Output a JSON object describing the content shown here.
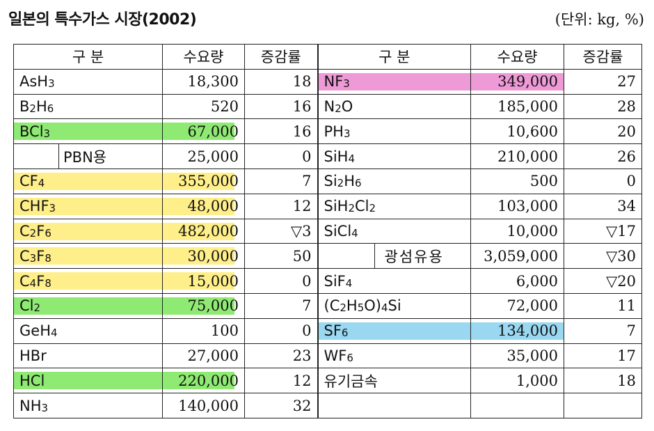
{
  "title": "일본의 특수가스 시장(2002)",
  "unit_note": "(단위: kg, %)",
  "headers": [
    "구  분",
    "수요량",
    "증감률",
    "구  분",
    "수요량",
    "증감률"
  ],
  "left_rows": [
    {
      "name_parts": [
        "AsH",
        "3"
      ],
      "demand": "18,300",
      "change": "18"
    },
    {
      "name_parts": [
        "B",
        "2",
        "H",
        "6"
      ],
      "demand": "520",
      "change": "16"
    },
    {
      "name_parts": [
        "BCl",
        "3"
      ],
      "demand": "67,000",
      "change": "16",
      "highlight": "green"
    },
    {
      "name_parts": [
        "PBN용"
      ],
      "demand": "25,000",
      "change": "0",
      "indent": true
    },
    {
      "name_parts": [
        "CF",
        "4"
      ],
      "demand": "355,000",
      "change": "7",
      "highlight": "yellow"
    },
    {
      "name_parts": [
        "CHF",
        "3"
      ],
      "demand": "48,000",
      "change": "12",
      "highlight": "yellow"
    },
    {
      "name_parts": [
        "C",
        "2",
        "F",
        "6"
      ],
      "demand": "482,000",
      "change": "▽3",
      "highlight": "yellow"
    },
    {
      "name_parts": [
        "C",
        "3",
        "F",
        "8"
      ],
      "demand": "30,000",
      "change": "50",
      "highlight": "yellow"
    },
    {
      "name_parts": [
        "C",
        "4",
        "F",
        "8"
      ],
      "demand": "15,000",
      "change": "0",
      "highlight": "yellow"
    },
    {
      "name_parts": [
        "Cl",
        "2"
      ],
      "demand": "75,000",
      "change": "7",
      "highlight": "green"
    },
    {
      "name_parts": [
        "GeH",
        "4"
      ],
      "demand": "100",
      "change": "0"
    },
    {
      "name_parts": [
        "HBr"
      ],
      "demand": "27,000",
      "change": "23"
    },
    {
      "name_parts": [
        "HCl"
      ],
      "demand": "220,000",
      "change": "12",
      "highlight": "green"
    },
    {
      "name_parts": [
        "NH",
        "3"
      ],
      "demand": "140,000",
      "change": "32"
    }
  ],
  "right_rows": [
    {
      "name_parts": [
        "NF",
        "3"
      ],
      "demand": "349,000",
      "change": "27",
      "highlight": "pink"
    },
    {
      "name_parts": [
        "N",
        "2",
        "O"
      ],
      "demand": "185,000",
      "change": "28"
    },
    {
      "name_parts": [
        "PH",
        "3"
      ],
      "demand": "10,600",
      "change": "20"
    },
    {
      "name_parts": [
        "SiH",
        "4"
      ],
      "demand": "210,000",
      "change": "26"
    },
    {
      "name_parts": [
        "Si",
        "2",
        "H",
        "6"
      ],
      "demand": "500",
      "change": "0"
    },
    {
      "name_parts": [
        "SiH",
        "2",
        "Cl",
        "2"
      ],
      "demand": "103,000",
      "change": "34"
    },
    {
      "name_parts": [
        "SiCl",
        "4"
      ],
      "demand": "10,000",
      "change": "▽17"
    },
    {
      "name_parts": [
        "광섬유용"
      ],
      "demand": "3,059,000",
      "change": "▽30",
      "indent": true
    },
    {
      "name_parts": [
        "SiF",
        "4"
      ],
      "demand": "6,000",
      "change": "▽20"
    },
    {
      "name_parts": [
        "(C",
        "2",
        "H",
        "5",
        "O)",
        "4",
        "Si"
      ],
      "demand": "72,000",
      "change": "11"
    },
    {
      "name_parts": [
        "SF",
        "6"
      ],
      "demand": "134,000",
      "change": "7",
      "highlight": "blue"
    },
    {
      "name_parts": [
        "WF",
        "6"
      ],
      "demand": "35,000",
      "change": "17"
    },
    {
      "name_parts": [
        "유기금속"
      ],
      "demand": "1,000",
      "change": "18"
    },
    {
      "name_parts": [
        ""
      ],
      "demand": "",
      "change": ""
    }
  ]
}
